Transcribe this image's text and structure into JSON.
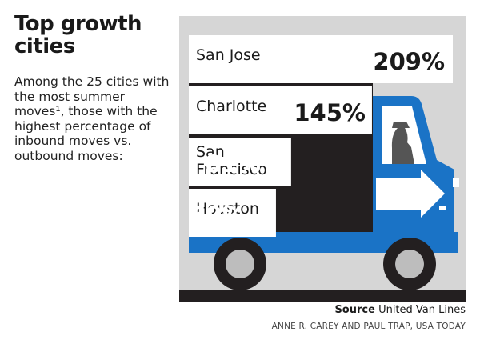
{
  "title": "Top growth cities",
  "subtitle": "Among the 25 cities with the most summer moves¹, those with the highest percentage of inbound moves vs. outbound moves:",
  "chart_data": {
    "type": "bar",
    "orientation": "horizontal",
    "title": "Top growth cities",
    "categories": [
      "San Jose",
      "Charlotte",
      "San Francisco",
      "Houston"
    ],
    "values": [
      209,
      145,
      81,
      69
    ],
    "value_labels": [
      "209%",
      "145%",
      "81%",
      "69%"
    ],
    "unit": "%"
  },
  "source_label": "Source",
  "source_text": "United Van Lines",
  "credit": "ANNE R. CAREY AND PAUL TRAP, USA TODAY",
  "colors": {
    "panel": "#d6d6d6",
    "truck_blue": "#1a73c6",
    "truck_dark": "#231f20",
    "bar_white": "#ffffff",
    "road": "#231f20"
  }
}
